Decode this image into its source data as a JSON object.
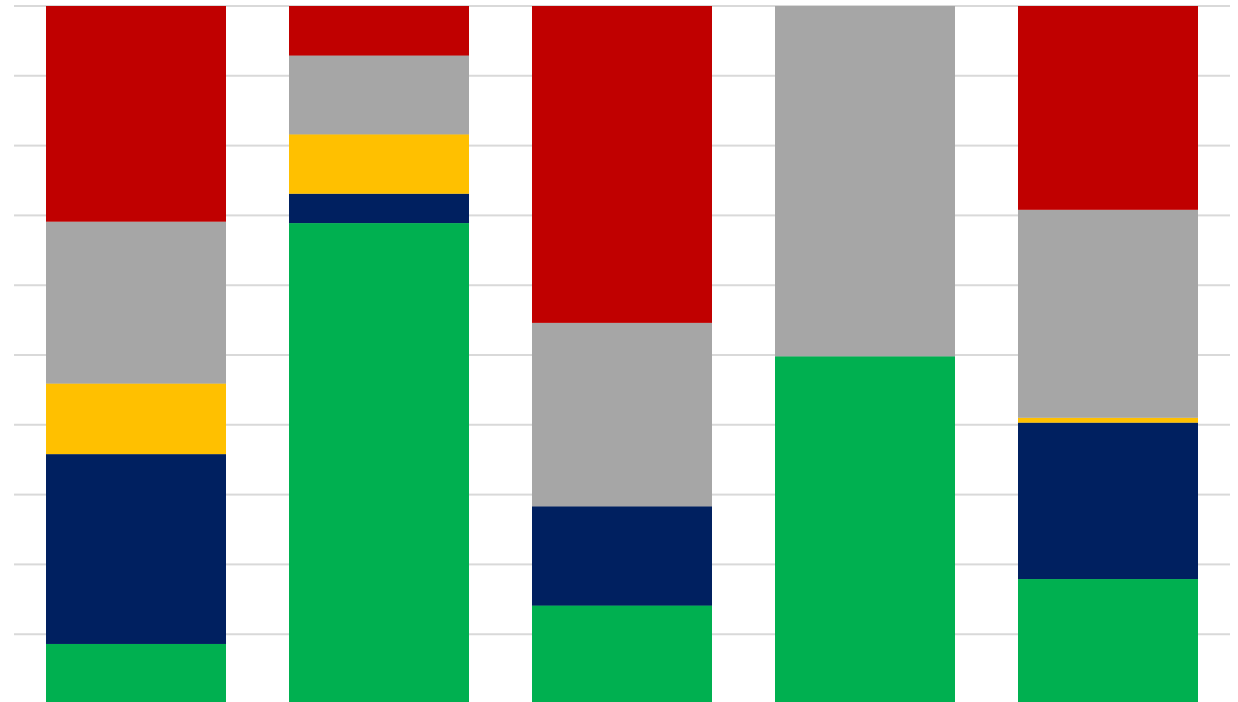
{
  "chart_data": {
    "type": "bar",
    "stacked": "percent",
    "categories": [
      "",
      "",
      "",
      "",
      ""
    ],
    "ylim": [
      0,
      100
    ],
    "grid": true,
    "gridline_step": 10,
    "legend": "none",
    "series": [
      {
        "color": "#00b050",
        "values": [
          8.6,
          68.9,
          14.1,
          49.8,
          17.9
        ]
      },
      {
        "color": "#002060",
        "values": [
          27.2,
          4.2,
          14.2,
          0,
          22.4
        ]
      },
      {
        "color": "#ffc000",
        "values": [
          10.1,
          8.5,
          0,
          0,
          0.7
        ]
      },
      {
        "color": "#a6a6a6",
        "values": [
          23.2,
          11.3,
          26.3,
          50.2,
          29.8
        ]
      },
      {
        "color": "#c00000",
        "values": [
          30.9,
          7.1,
          45.4,
          0,
          29.2
        ]
      }
    ]
  }
}
